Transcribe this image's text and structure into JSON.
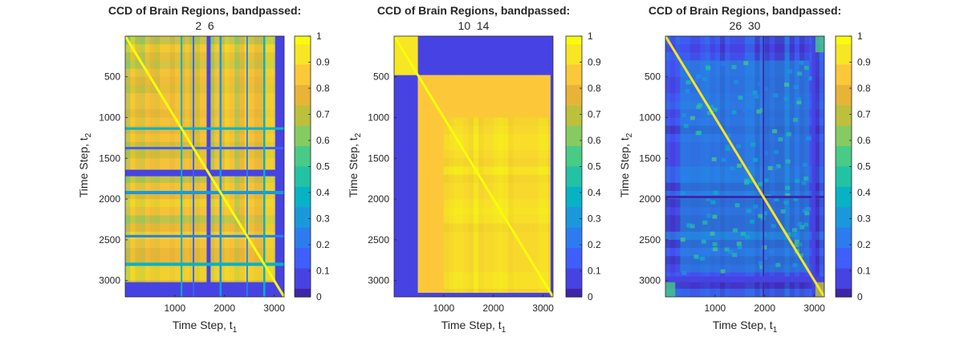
{
  "colors": {
    "parula": [
      "#3e26a8",
      "#4743e3",
      "#3f5ffb",
      "#2c7cf0",
      "#1b98dc",
      "#08b2c5",
      "#23c2a4",
      "#48cb86",
      "#86cb62",
      "#bdc03b",
      "#e8b437",
      "#fcc83a",
      "#f7e623",
      "#f9fb0e"
    ],
    "text": "#262626"
  },
  "chart_data": [
    {
      "type": "heatmap",
      "title": "CCD of Brain Regions, bandpassed:",
      "subtitle": "2  6",
      "xlabel": "Time Step, t",
      "xlabel_sub": "1",
      "ylabel": "Time Step, t",
      "ylabel_sub": "2",
      "xlim": [
        1,
        3200
      ],
      "ylim": [
        1,
        3200
      ],
      "xticks": [
        "1000",
        "2000",
        "3000"
      ],
      "xtick_values": [
        1000,
        2000,
        3000
      ],
      "yticks": [
        "500",
        "1000",
        "1500",
        "2000",
        "2500",
        "3000"
      ],
      "ytick_values": [
        500,
        1000,
        1500,
        2000,
        2500,
        3000
      ],
      "colorbar_ticks": [
        "0",
        "0.1",
        "0.2",
        "0.3",
        "0.4",
        "0.5",
        "0.6",
        "0.7",
        "0.8",
        "0.9",
        "1"
      ],
      "colorbar_values": [
        0,
        0.1,
        0.2,
        0.3,
        0.4,
        0.5,
        0.6,
        0.7,
        0.8,
        0.9,
        1
      ],
      "clim": [
        0,
        1
      ],
      "base_level": 0.75,
      "diagonal": 1.0,
      "low_bands": [
        {
          "from": 1640,
          "to": 1720,
          "level": 0.06
        },
        {
          "from": 3020,
          "to": 3200,
          "level": 0.05
        },
        {
          "from": 1360,
          "to": 1390,
          "level": 0.18
        },
        {
          "from": 2440,
          "to": 2470,
          "level": 0.22
        },
        {
          "from": 1900,
          "to": 1940,
          "level": 0.3
        },
        {
          "from": 1120,
          "to": 1150,
          "level": 0.4
        },
        {
          "from": 2780,
          "to": 2820,
          "level": 0.35
        }
      ]
    },
    {
      "type": "heatmap",
      "title": "CCD of Brain Regions, bandpassed:",
      "subtitle": "10  14",
      "xlabel": "Time Step, t",
      "xlabel_sub": "1",
      "ylabel": "Time Step, t",
      "ylabel_sub": "2",
      "xlim": [
        1,
        3200
      ],
      "ylim": [
        1,
        3200
      ],
      "xticks": [
        "1000",
        "2000",
        "3000"
      ],
      "xtick_values": [
        1000,
        2000,
        3000
      ],
      "yticks": [
        "500",
        "1000",
        "1500",
        "2000",
        "2500",
        "3000"
      ],
      "ytick_values": [
        500,
        1000,
        1500,
        2000,
        2500,
        3000
      ],
      "colorbar_ticks": [
        "0",
        "0.1",
        "0.2",
        "0.3",
        "0.4",
        "0.5",
        "0.6",
        "0.7",
        "0.8",
        "0.9",
        "1"
      ],
      "colorbar_values": [
        0,
        0.1,
        0.2,
        0.3,
        0.4,
        0.5,
        0.6,
        0.7,
        0.8,
        0.9,
        1
      ],
      "clim": [
        0,
        1
      ],
      "base_level": 0.9,
      "diagonal": 1.0,
      "blocks": [
        {
          "x": [
            1,
            480
          ],
          "y": [
            1,
            480
          ],
          "level": 0.95
        },
        {
          "x": [
            480,
            3200
          ],
          "y": [
            1,
            480
          ],
          "level": 0.08
        },
        {
          "x": [
            1,
            480
          ],
          "y": [
            480,
            3200
          ],
          "level": 0.08
        },
        {
          "x": [
            480,
            3200
          ],
          "y": [
            480,
            1000
          ],
          "level": 0.82
        },
        {
          "x": [
            480,
            1000
          ],
          "y": [
            480,
            3200
          ],
          "level": 0.82
        }
      ],
      "low_bands": [
        {
          "from": 3150,
          "to": 3200,
          "level": 0.1
        }
      ]
    },
    {
      "type": "heatmap",
      "title": "CCD of Brain Regions, bandpassed:",
      "subtitle": "26  30",
      "xlabel": "Time Step, t",
      "xlabel_sub": "1",
      "ylabel": "Time Step, t",
      "ylabel_sub": "2",
      "xlim": [
        1,
        3200
      ],
      "ylim": [
        1,
        3200
      ],
      "xticks": [
        "1000",
        "2000",
        "3000"
      ],
      "xtick_values": [
        1000,
        2000,
        3000
      ],
      "yticks": [
        "500",
        "1000",
        "1500",
        "2000",
        "2500",
        "3000"
      ],
      "ytick_values": [
        500,
        1000,
        1500,
        2000,
        2500,
        3000
      ],
      "colorbar_ticks": [
        "0",
        "0.1",
        "0.2",
        "0.3",
        "0.4",
        "0.5",
        "0.6",
        "0.7",
        "0.8",
        "0.9",
        "1"
      ],
      "colorbar_values": [
        0,
        0.1,
        0.2,
        0.3,
        0.4,
        0.5,
        0.6,
        0.7,
        0.8,
        0.9,
        1
      ],
      "clim": [
        0,
        1
      ],
      "base_level": 0.1,
      "diagonal": 0.95,
      "mid_block": {
        "x": [
          300,
          2900
        ],
        "y": [
          300,
          2900
        ],
        "level": 0.3
      },
      "corner_blocks": [
        {
          "x": [
            1,
            200
          ],
          "y": [
            3000,
            3200
          ],
          "level": 0.5
        },
        {
          "x": [
            3000,
            3200
          ],
          "y": [
            1,
            200
          ],
          "level": 0.5
        },
        {
          "x": [
            3000,
            3200
          ],
          "y": [
            3000,
            3200
          ],
          "level": 0.7
        }
      ],
      "low_bands": [
        {
          "from": 1960,
          "to": 1990,
          "level": 0.02
        },
        {
          "from": 2950,
          "to": 3020,
          "level": 0.05
        }
      ]
    }
  ]
}
